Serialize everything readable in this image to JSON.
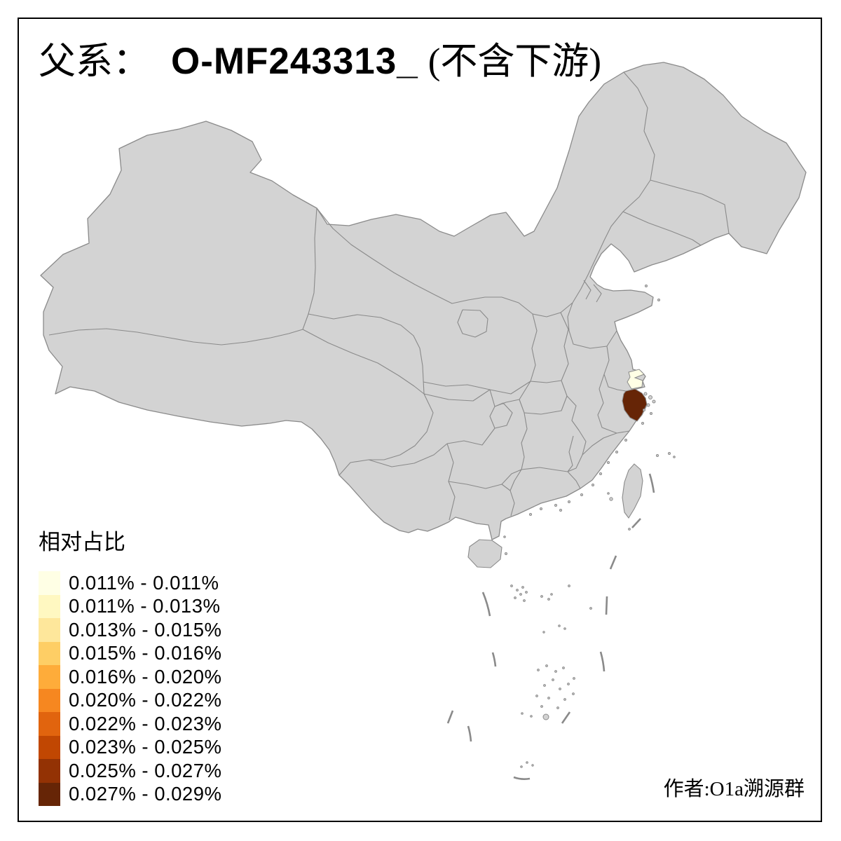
{
  "title": {
    "prefix": "父系：",
    "main": "O-MF243313_",
    "suffix": "(不含下游)"
  },
  "legend": {
    "title": "相对占比",
    "items": [
      {
        "label": "0.011% - 0.011%",
        "color": "#FFFFE5"
      },
      {
        "label": "0.011% - 0.013%",
        "color": "#FFF8C1"
      },
      {
        "label": "0.013% - 0.015%",
        "color": "#FEE79B"
      },
      {
        "label": "0.015% - 0.016%",
        "color": "#FECE65"
      },
      {
        "label": "0.016% - 0.020%",
        "color": "#FEAC3A"
      },
      {
        "label": "0.020% - 0.022%",
        "color": "#F68720"
      },
      {
        "label": "0.022% - 0.023%",
        "color": "#E1640E"
      },
      {
        "label": "0.023% - 0.025%",
        "color": "#C14702"
      },
      {
        "label": "0.025% - 0.027%",
        "color": "#933204"
      },
      {
        "label": "0.027% - 0.029%",
        "color": "#662506"
      }
    ]
  },
  "author": "作者:O1a溯源群",
  "map": {
    "land_fill": "#D3D3D3",
    "border_color": "#8A8A8A",
    "frame_color": "#000000",
    "sea_fill": "#FFFFFF",
    "regions": [
      {
        "id": "shanghai",
        "bin": "0.011% - 0.011%",
        "color": "#FFFFE5"
      },
      {
        "id": "zhejiang",
        "bin": "0.027% - 0.029%",
        "color": "#662506"
      }
    ]
  },
  "chart_data": {
    "type": "choropleth-map",
    "title": "父系： O-MF243313_ (不含下游)",
    "legend_title": "相对占比",
    "bins": [
      "0.011% - 0.011%",
      "0.011% - 0.013%",
      "0.013% - 0.015%",
      "0.015% - 0.016%",
      "0.016% - 0.020%",
      "0.020% - 0.022%",
      "0.022% - 0.023%",
      "0.023% - 0.025%",
      "0.025% - 0.027%",
      "0.027% - 0.029%"
    ],
    "colors": [
      "#FFFFE5",
      "#FFF8C1",
      "#FEE79B",
      "#FECE65",
      "#FEAC3A",
      "#F68720",
      "#E1640E",
      "#C14702",
      "#933204",
      "#662506"
    ],
    "colored_regions": [
      {
        "id": "shanghai",
        "bin": "0.011% - 0.011%"
      },
      {
        "id": "zhejiang",
        "bin": "0.027% - 0.029%"
      }
    ],
    "base_region_fill": "#D3D3D3",
    "note": "作者:O1a溯源群"
  }
}
